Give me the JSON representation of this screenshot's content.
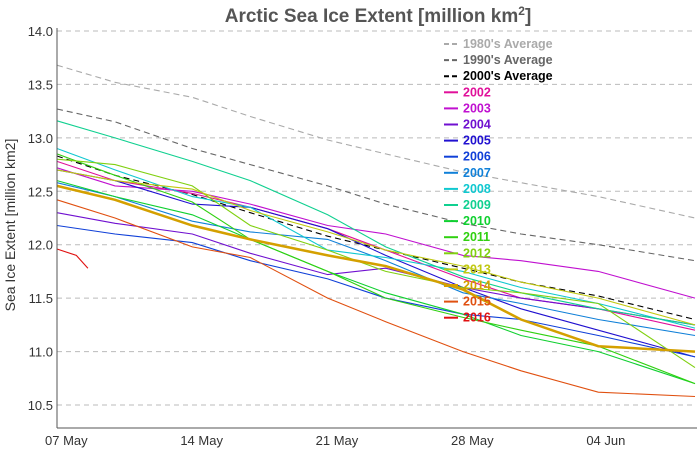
{
  "chart_data": {
    "type": "line",
    "title": "Arctic Sea Ice Extent [million km",
    "title_superscript": "2",
    "title_suffix": "]",
    "ylabel": "Sea Ice Extent [million km2]",
    "xlabel": "",
    "ylim": [
      10.28,
      14.0
    ],
    "xlim": [
      "07 May",
      "09 Jun"
    ],
    "yticks": [
      "10.5",
      "11.0",
      "11.5",
      "12.0",
      "12.5",
      "13.0",
      "13.5",
      "14.0"
    ],
    "xticks": [
      "07 May",
      "14 May",
      "21 May",
      "28 May",
      "04 Jun"
    ],
    "grid": "horizontal dashed",
    "legend_position": "top-right",
    "x": [
      "07 May",
      "10 May",
      "14 May",
      "17 May",
      "21 May",
      "24 May",
      "28 May",
      "31 May",
      "04 Jun",
      "09 Jun"
    ],
    "series": [
      {
        "name": "1980's Average",
        "color": "#aaaaaa",
        "dash": true,
        "values": [
          13.68,
          13.52,
          13.38,
          13.2,
          12.98,
          12.85,
          12.68,
          12.58,
          12.45,
          12.25
        ]
      },
      {
        "name": "1990's Average",
        "color": "#666666",
        "dash": true,
        "values": [
          13.27,
          13.15,
          12.9,
          12.75,
          12.55,
          12.38,
          12.2,
          12.1,
          12.0,
          11.85
        ]
      },
      {
        "name": "2000's Average",
        "color": "#000000",
        "dash": true,
        "values": [
          12.83,
          12.65,
          12.47,
          12.3,
          12.08,
          11.95,
          11.78,
          11.65,
          11.52,
          11.3
        ]
      },
      {
        "name": "2002",
        "color": "#e0109a",
        "values": [
          12.78,
          12.6,
          12.48,
          12.35,
          12.15,
          11.95,
          11.68,
          11.5,
          11.4,
          11.2
        ]
      },
      {
        "name": "2003",
        "color": "#c010d0",
        "values": [
          12.72,
          12.55,
          12.5,
          12.38,
          12.18,
          12.1,
          11.9,
          11.85,
          11.75,
          11.5
        ]
      },
      {
        "name": "2004",
        "color": "#7010d0",
        "values": [
          12.3,
          12.2,
          12.1,
          11.92,
          11.72,
          11.78,
          11.6,
          11.5,
          11.4,
          11.25
        ]
      },
      {
        "name": "2005",
        "color": "#2010d0",
        "values": [
          12.7,
          12.6,
          12.38,
          12.35,
          12.15,
          11.9,
          11.6,
          11.4,
          11.2,
          10.95
        ]
      },
      {
        "name": "2006",
        "color": "#1040d8",
        "values": [
          12.18,
          12.1,
          12.02,
          11.85,
          11.68,
          11.5,
          11.35,
          11.3,
          11.15,
          10.95
        ]
      },
      {
        "name": "2007",
        "color": "#1080d8",
        "values": [
          12.58,
          12.45,
          12.22,
          12.12,
          12.05,
          11.85,
          11.55,
          11.45,
          11.3,
          11.15
        ]
      },
      {
        "name": "2008",
        "color": "#10c8d0",
        "values": [
          12.9,
          12.7,
          12.45,
          12.35,
          11.95,
          11.88,
          11.75,
          11.6,
          11.45,
          11.22
        ]
      },
      {
        "name": "2009",
        "color": "#10d090",
        "values": [
          13.16,
          13.0,
          12.78,
          12.6,
          12.28,
          11.98,
          11.7,
          11.55,
          11.4,
          11.25
        ]
      },
      {
        "name": "2010",
        "color": "#10d030",
        "values": [
          12.6,
          12.45,
          12.28,
          12.05,
          11.75,
          11.55,
          11.35,
          11.15,
          11.0,
          10.7
        ]
      },
      {
        "name": "2011",
        "color": "#30d010",
        "values": [
          12.85,
          12.65,
          12.4,
          12.05,
          11.75,
          11.5,
          11.32,
          11.2,
          11.05,
          10.7
        ]
      },
      {
        "name": "2012",
        "color": "#80d010",
        "values": [
          12.8,
          12.75,
          12.55,
          12.18,
          11.95,
          11.75,
          11.6,
          11.55,
          11.45,
          10.85
        ]
      },
      {
        "name": "2013",
        "color": "#c0c810",
        "values": [
          12.7,
          12.6,
          12.52,
          12.32,
          12.12,
          11.95,
          11.8,
          11.65,
          11.5,
          11.25
        ]
      },
      {
        "name": "2014",
        "color": "#d4a000",
        "width": 2.5,
        "values": [
          12.55,
          12.42,
          12.18,
          12.05,
          11.9,
          11.8,
          11.58,
          11.3,
          11.05,
          11.0
        ]
      },
      {
        "name": "2015",
        "color": "#e05010",
        "values": [
          12.42,
          12.25,
          11.98,
          11.88,
          11.5,
          11.28,
          11.0,
          10.82,
          10.62,
          10.58
        ]
      },
      {
        "name": "2016",
        "color": "#e01010",
        "x": [
          "07 May",
          "08 May",
          "08.6 May"
        ],
        "values": [
          11.96,
          11.9,
          11.78
        ]
      }
    ]
  }
}
